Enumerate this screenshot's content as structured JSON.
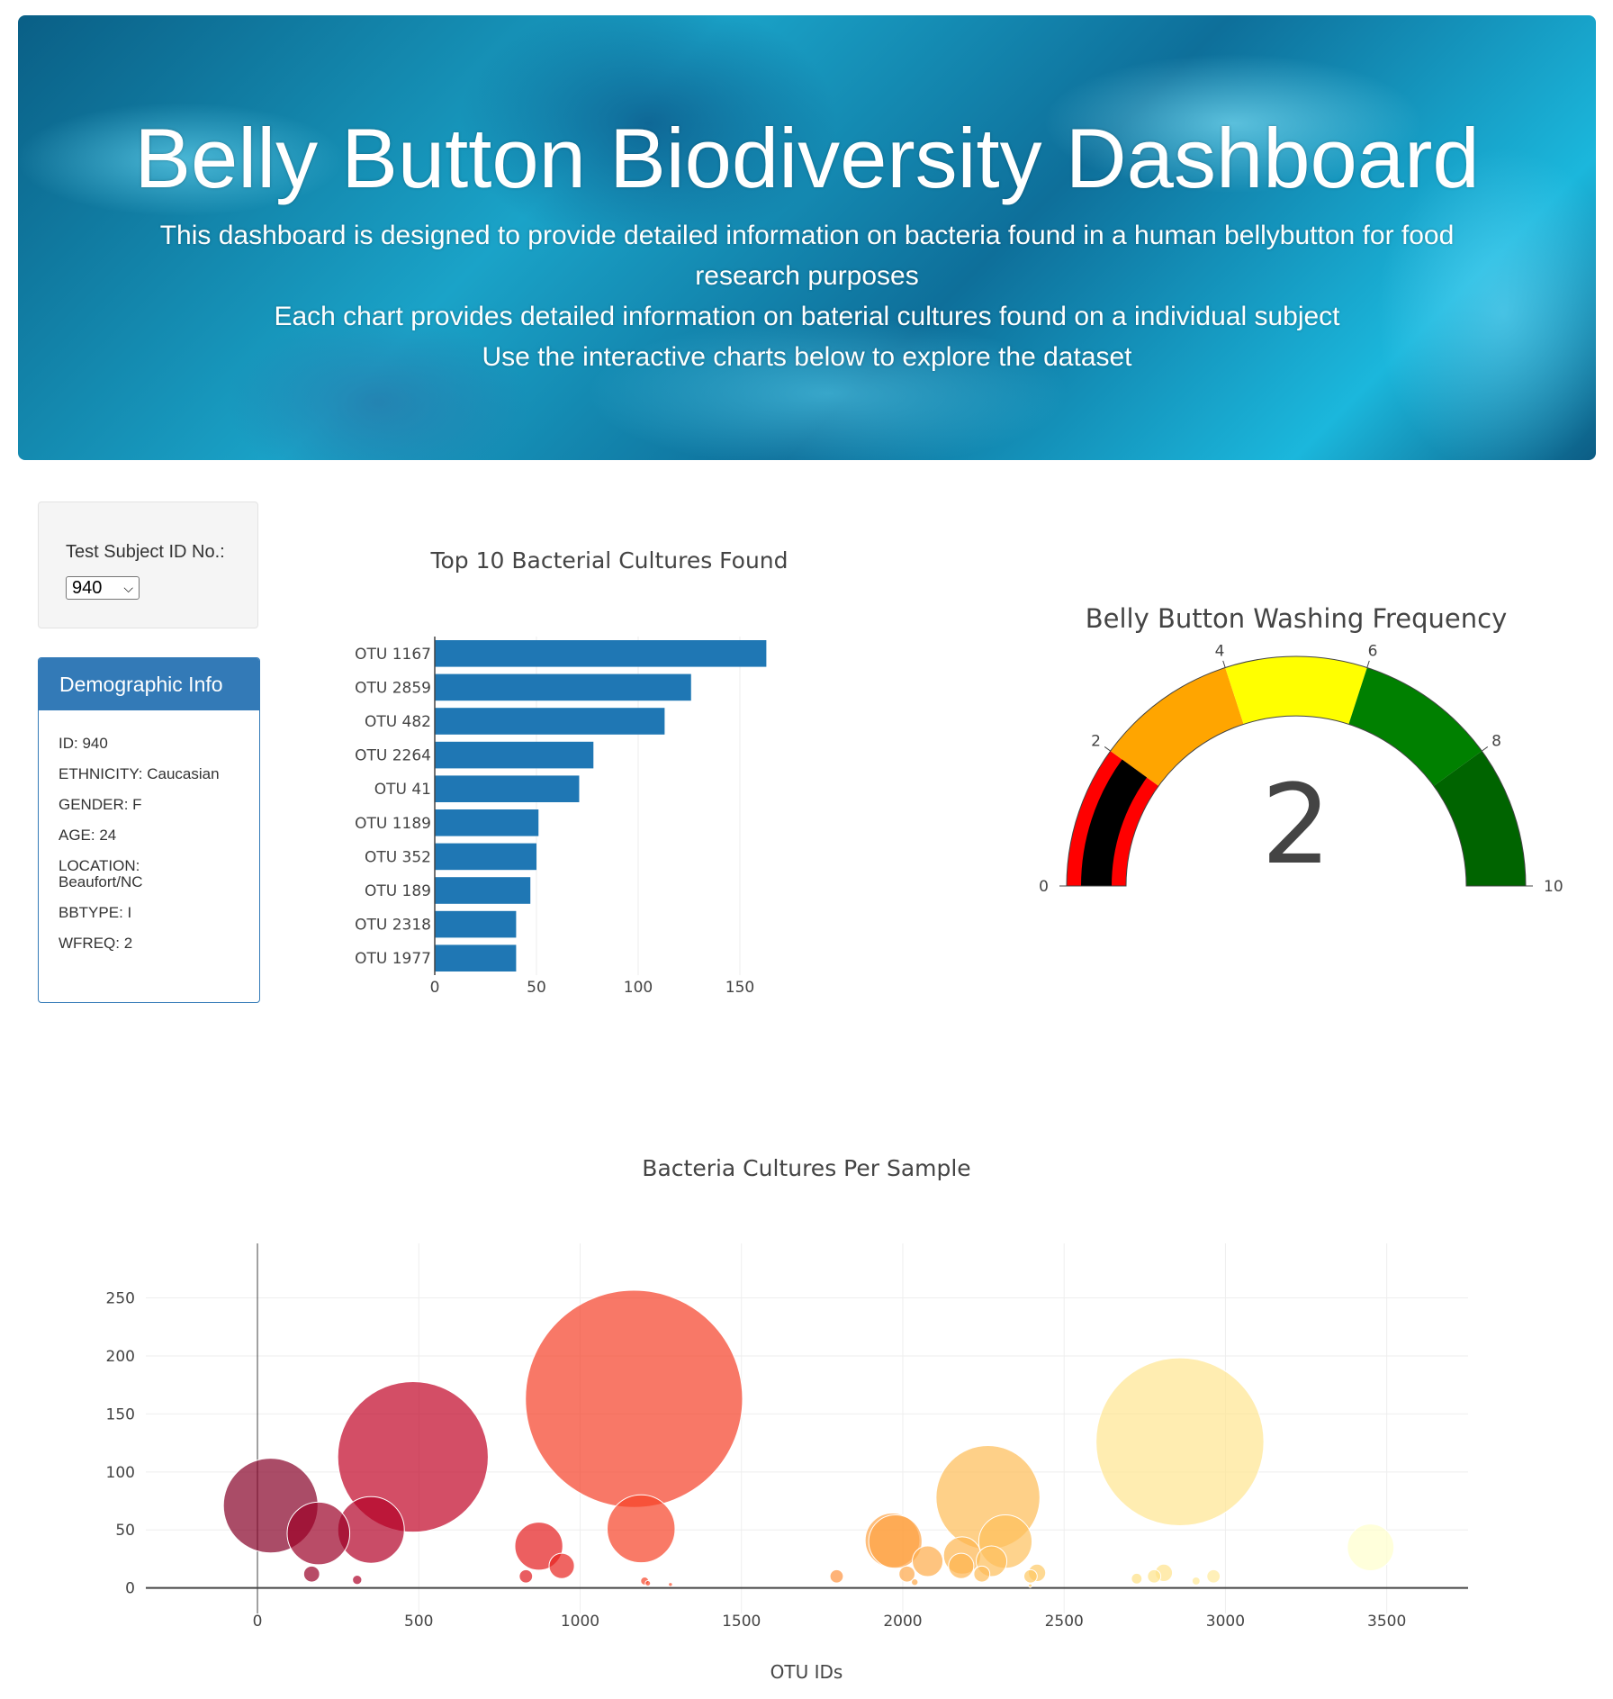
{
  "header": {
    "title": "Belly Button Biodiversity Dashboard",
    "subtitle_lines": [
      "This dashboard is designed to provide detailed information on bacteria found in a human bellybutton for food research purposes",
      "Each chart provides detailed information on baterial cultures found on a individual subject",
      "Use the interactive charts below to explore the dataset"
    ]
  },
  "selector": {
    "label": "Test Subject ID No.:",
    "value": "940",
    "icon": "chevron-down-icon"
  },
  "demographics": {
    "title": "Demographic Info",
    "items": [
      "ID: 940",
      "ETHNICITY: Caucasian",
      "GENDER: F",
      "AGE: 24",
      "LOCATION: Beaufort/NC",
      "BBTYPE: I",
      "WFREQ: 2"
    ]
  },
  "chart_data": [
    {
      "type": "bar",
      "orientation": "horizontal",
      "title": "Top 10 Bacterial Cultures Found",
      "categories": [
        "OTU 1167",
        "OTU 2859",
        "OTU 482",
        "OTU 2264",
        "OTU 41",
        "OTU 1189",
        "OTU 352",
        "OTU 189",
        "OTU 2318",
        "OTU 1977"
      ],
      "values": [
        163,
        126,
        113,
        78,
        71,
        51,
        50,
        47,
        40,
        40
      ],
      "xticks": [
        0,
        50,
        100,
        150
      ],
      "xlim": [
        0,
        170
      ],
      "color": "#1f77b4",
      "grid": true
    },
    {
      "type": "gauge",
      "title": "Belly Button Washing Frequency",
      "value": 2,
      "range": [
        0,
        10
      ],
      "ticks": [
        0,
        2,
        4,
        6,
        8,
        10
      ],
      "steps": [
        {
          "range": [
            0,
            2
          ],
          "color": "#ff0000"
        },
        {
          "range": [
            2,
            4
          ],
          "color": "#ffa500"
        },
        {
          "range": [
            4,
            6
          ],
          "color": "#ffff00"
        },
        {
          "range": [
            6,
            8
          ],
          "color": "#008000"
        },
        {
          "range": [
            8,
            10
          ],
          "color": "#006400"
        }
      ],
      "bar_color": "#000000"
    },
    {
      "type": "scatter",
      "subtype": "bubble",
      "title": "Bacteria Cultures Per Sample",
      "xlabel": "OTU IDs",
      "ylabel": "",
      "xlim": [
        -346,
        3752
      ],
      "ylim": [
        -22,
        297
      ],
      "xticks": [
        0,
        500,
        1000,
        1500,
        2000,
        2500,
        3000,
        3500
      ],
      "yticks": [
        0,
        50,
        100,
        150,
        200,
        250
      ],
      "grid": true,
      "colorscale": [
        "#800026",
        "#bd0026",
        "#e31a1c",
        "#fc4e2a",
        "#fd8d3c",
        "#feb24c",
        "#fed976",
        "#ffeda0",
        "#ffffcc"
      ],
      "opacity": 0.7,
      "x": [
        1167,
        2859,
        482,
        2264,
        41,
        1189,
        352,
        189,
        2318,
        1977,
        1968,
        2077,
        2184,
        2275,
        872,
        943,
        168,
        309,
        832,
        1795,
        2181,
        2245,
        2013,
        2037,
        2416,
        2396,
        2809,
        2779,
        2725,
        2963,
        2909,
        3450,
        1200,
        1210,
        1280,
        2395
      ],
      "y": [
        163,
        126,
        113,
        78,
        71,
        51,
        50,
        47,
        40,
        40,
        41,
        23,
        28,
        23,
        36,
        19,
        12,
        7,
        10,
        10,
        19,
        12,
        12,
        5,
        13,
        10,
        13,
        10,
        8,
        10,
        6,
        35,
        6,
        4,
        3,
        2
      ]
    }
  ]
}
